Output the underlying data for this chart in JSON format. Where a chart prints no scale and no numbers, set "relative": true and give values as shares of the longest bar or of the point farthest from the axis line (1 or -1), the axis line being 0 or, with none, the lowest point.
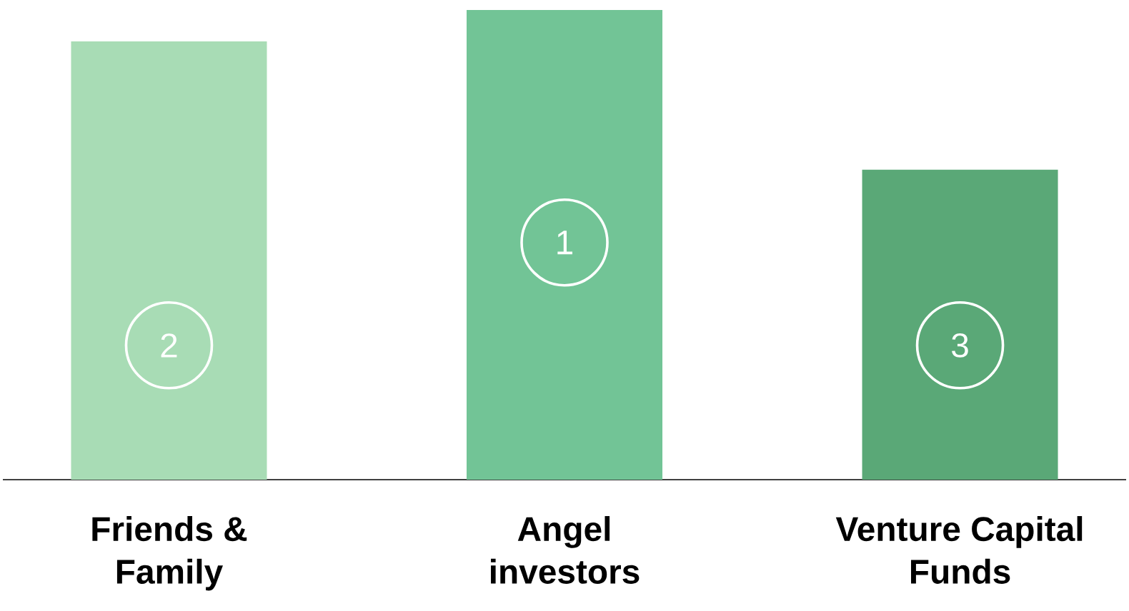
{
  "chart_data": {
    "type": "bar",
    "relative": true,
    "categories": [
      "Friends & Family",
      "Angel investors",
      "Venture Capital Funds"
    ],
    "values": [
      0.933,
      1,
      0.66
    ],
    "colors": [
      "#a8dcb5",
      "#72c496",
      "#5aa877"
    ],
    "annotations": [
      "2",
      "1",
      "3"
    ]
  }
}
